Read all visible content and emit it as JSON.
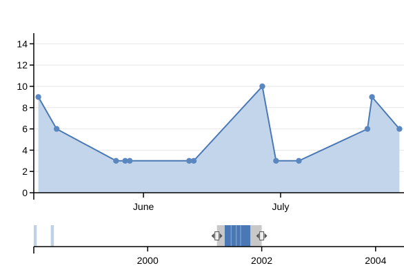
{
  "colors": {
    "area_fill": "#c3d5ea",
    "line": "#4a78b5",
    "point": "#5a87c0",
    "grid": "#e6e6e6",
    "axis": "#000000",
    "brush_fill": "#4a78b5",
    "brush_overlay": "#c8c8c8",
    "brush_handle": "#555555"
  },
  "chart_data": [
    {
      "type": "area",
      "role": "focus",
      "title": "",
      "xlabel": "",
      "ylabel": "",
      "ylim": [
        0,
        15
      ],
      "y_ticks": [
        "0",
        "2",
        "4",
        "6",
        "8",
        "10",
        "12",
        "14"
      ],
      "x_range": [
        "2001-05-08",
        "2001-07-28"
      ],
      "x_ticks": [
        {
          "date": "2001-06-01",
          "label": "June"
        },
        {
          "date": "2001-07-01",
          "label": "July"
        }
      ],
      "grid": "horizontal",
      "points": [
        {
          "x": "2001-05-09",
          "y": 9
        },
        {
          "x": "2001-05-13",
          "y": 6
        },
        {
          "x": "2001-05-26",
          "y": 3
        },
        {
          "x": "2001-05-28",
          "y": 3
        },
        {
          "x": "2001-05-29",
          "y": 3
        },
        {
          "x": "2001-06-11",
          "y": 3
        },
        {
          "x": "2001-06-12",
          "y": 3
        },
        {
          "x": "2001-06-27",
          "y": 10
        },
        {
          "x": "2001-06-30",
          "y": 3
        },
        {
          "x": "2001-07-05",
          "y": 3
        },
        {
          "x": "2001-07-20",
          "y": 6
        },
        {
          "x": "2001-07-21",
          "y": 9
        },
        {
          "x": "2001-07-27",
          "y": 6
        }
      ]
    },
    {
      "type": "area",
      "role": "context",
      "x_range": [
        "1998-01-01",
        "2004-07-01"
      ],
      "x_ticks": [
        {
          "date": "2000-01-01",
          "label": "2000"
        },
        {
          "date": "2002-01-01",
          "label": "2002"
        },
        {
          "date": "2004-01-01",
          "label": "2004"
        }
      ],
      "brush_selection": [
        "2001-03-20",
        "2002-01-01"
      ],
      "data_segments": [
        {
          "start": "1998-01-01",
          "end": "1998-01-20"
        },
        {
          "start": "1998-04-20",
          "end": "1998-05-10"
        },
        {
          "start": "2001-05-09",
          "end": "2001-10-20"
        }
      ]
    }
  ]
}
